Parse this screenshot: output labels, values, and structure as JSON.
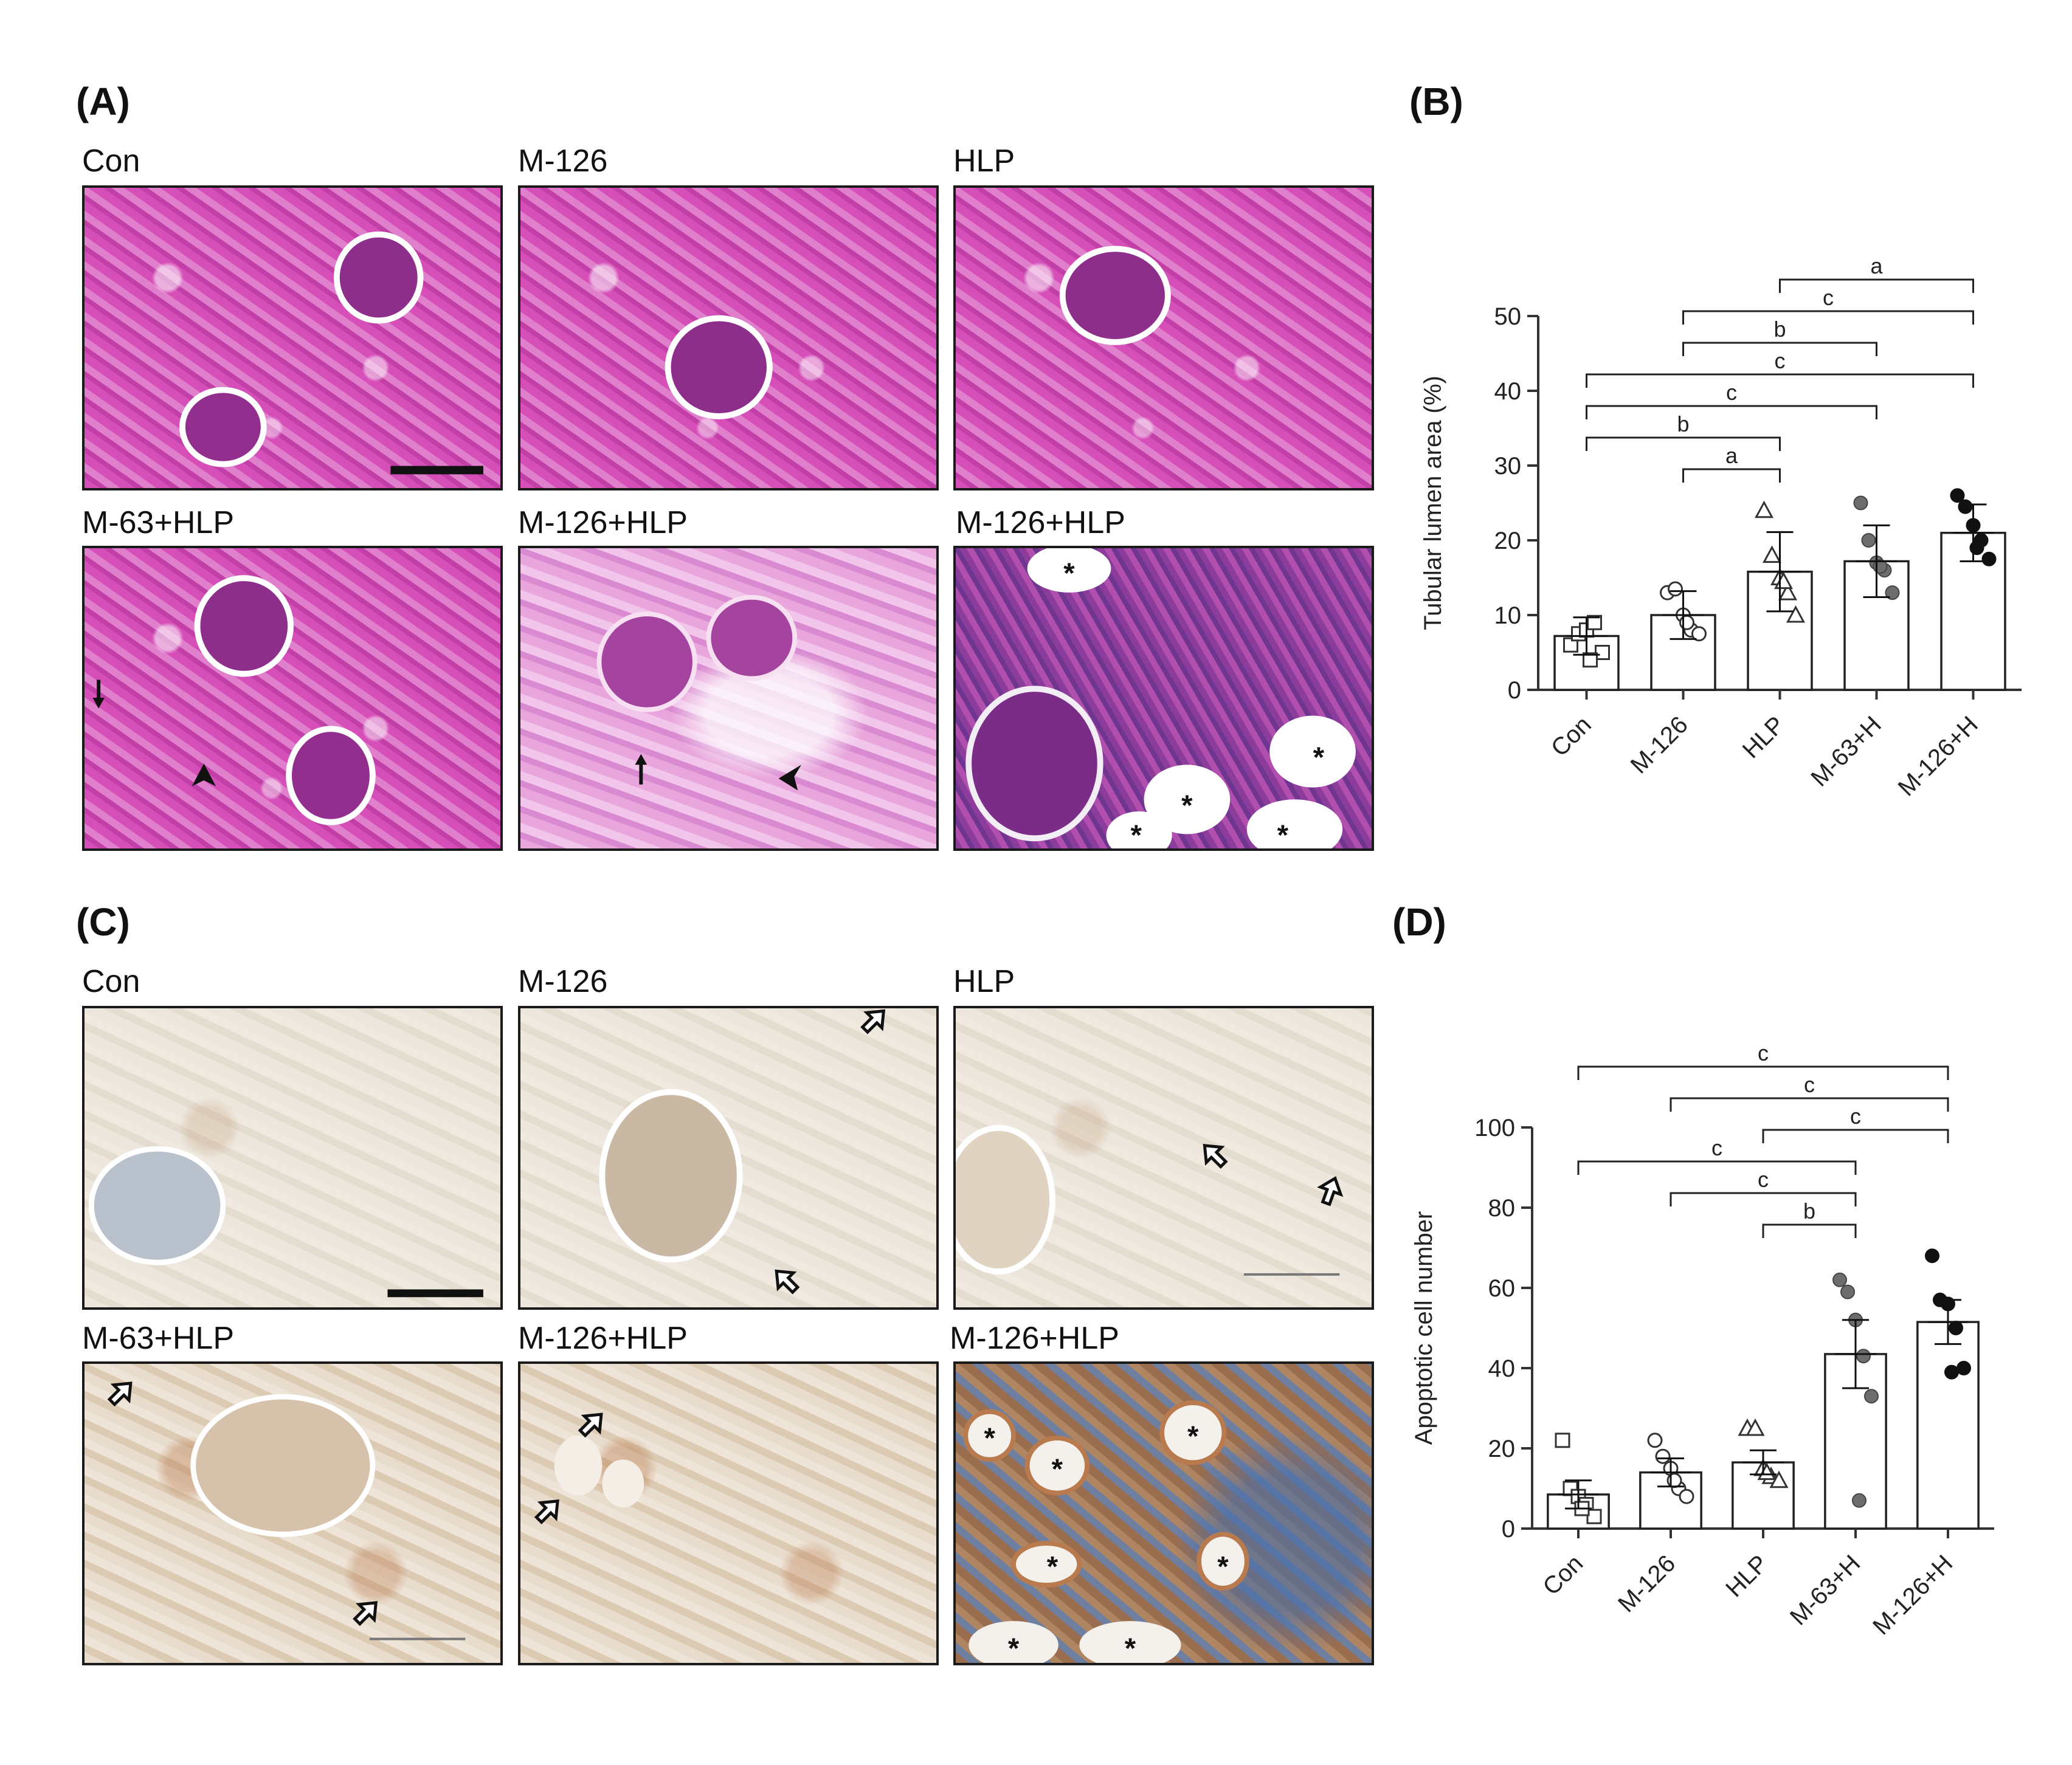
{
  "panel_letters": {
    "a": "(A)",
    "b": "(B)",
    "c": "(C)",
    "d": "(D)"
  },
  "panel_a": {
    "captions": [
      "Con",
      "M-126",
      "HLP",
      "M-63+HLP",
      "M-126+HLP",
      "M-126+HLP"
    ]
  },
  "panel_c": {
    "captions": [
      "Con",
      "M-126",
      "HLP",
      "M-63+HLP",
      "M-126+HLP",
      "M-126+HLP"
    ]
  },
  "lumen_marker": "*",
  "chart_data": [
    {
      "type": "bar",
      "panel": "(B)",
      "categories": [
        "Con",
        "M-126",
        "HLP",
        "M-63+H",
        "M-126+H"
      ],
      "ylabel": "Tubular lumen area (%)",
      "ylim": [
        0,
        50
      ],
      "yticks": [
        0,
        10,
        20,
        30,
        40,
        50
      ],
      "means": [
        7.2,
        10.0,
        15.8,
        17.2,
        21.0
      ],
      "sd": [
        2.5,
        3.2,
        5.3,
        4.8,
        3.8
      ],
      "points": [
        [
          6,
          7.5,
          8,
          9,
          5,
          4
        ],
        [
          13,
          13.5,
          10,
          8,
          7.5,
          9
        ],
        [
          24,
          18,
          15,
          13,
          10,
          14.5
        ],
        [
          25,
          20,
          17,
          16,
          13,
          16.5
        ],
        [
          26,
          24.5,
          22,
          20,
          17.5,
          19
        ]
      ],
      "markers": [
        "open-square",
        "open-circle",
        "open-triangle",
        "gray-circle",
        "black-circle"
      ],
      "significance": [
        {
          "from": 2,
          "to": 4,
          "label": "a"
        },
        {
          "from": 1,
          "to": 4,
          "label": "c"
        },
        {
          "from": 1,
          "to": 3,
          "label": "b"
        },
        {
          "from": 0,
          "to": 4,
          "label": "c"
        },
        {
          "from": 0,
          "to": 3,
          "label": "c"
        },
        {
          "from": 0,
          "to": 2,
          "label": "b"
        },
        {
          "from": 1,
          "to": 2,
          "label": "a"
        }
      ]
    },
    {
      "type": "bar",
      "panel": "(D)",
      "categories": [
        "Con",
        "M-126",
        "HLP",
        "M-63+H",
        "M-126+H"
      ],
      "ylabel": "Apoptotic cell number",
      "ylim": [
        0,
        100
      ],
      "yticks": [
        0,
        20,
        40,
        60,
        80,
        100
      ],
      "means": [
        8.5,
        14.0,
        16.5,
        43.5,
        51.5
      ],
      "sem": [
        3.5,
        3.5,
        3.0,
        8.5,
        5.5
      ],
      "points": [
        [
          22,
          10,
          8,
          6,
          3,
          5
        ],
        [
          22,
          18,
          15,
          10,
          8,
          12
        ],
        [
          25,
          25,
          15,
          13,
          12,
          14
        ],
        [
          62,
          59,
          52,
          43,
          33,
          7
        ],
        [
          68,
          57,
          56,
          50,
          40,
          39
        ]
      ],
      "markers": [
        "open-square",
        "open-circle",
        "open-triangle",
        "gray-circle",
        "black-circle"
      ],
      "significance": [
        {
          "from": 0,
          "to": 4,
          "label": "c"
        },
        {
          "from": 1,
          "to": 4,
          "label": "c"
        },
        {
          "from": 2,
          "to": 4,
          "label": "c"
        },
        {
          "from": 0,
          "to": 3,
          "label": "c"
        },
        {
          "from": 1,
          "to": 3,
          "label": "c"
        },
        {
          "from": 2,
          "to": 3,
          "label": "b"
        }
      ]
    }
  ]
}
